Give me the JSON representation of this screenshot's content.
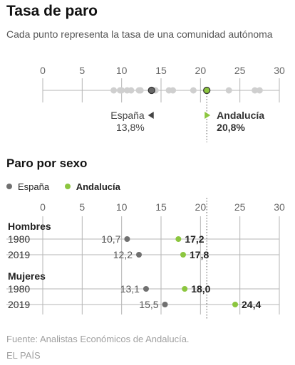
{
  "header": {
    "title": "Tasa de paro",
    "subtitle": "Cada punto representa la tasa de una comunidad autónoma"
  },
  "section2": {
    "title": "Paro por sexo",
    "legend": [
      {
        "label": "España",
        "color": "#707070",
        "bold": false
      },
      {
        "label": "Andalucía",
        "color": "#8cc63f",
        "bold": true
      }
    ]
  },
  "footer": {
    "source": "Fuente: Analistas Económicos de Andalucía.",
    "publisher": "EL PAÍS"
  },
  "colors": {
    "spain": "#707070",
    "andalucia": "#8cc63f",
    "region": "#cfcfcf",
    "axis": "#b5b5b5"
  },
  "chart_data": [
    {
      "type": "scatter",
      "title": "Tasa de paro",
      "subtitle": "Cada punto representa la tasa de una comunidad autónoma",
      "xlim": [
        0,
        30
      ],
      "xticks": [
        0,
        5,
        10,
        15,
        20,
        25,
        30
      ],
      "regions": [
        9.0,
        9.8,
        10.0,
        10.7,
        11.2,
        12.2,
        12.4,
        14.3,
        16.0,
        16.5,
        19.1,
        23.6,
        26.9,
        27.5
      ],
      "spain": {
        "label": "España",
        "value": 13.8,
        "value_label": "13,8%"
      },
      "andalucia": {
        "label": "Andalucía",
        "value": 20.8,
        "value_label": "20,8%"
      }
    },
    {
      "type": "scatter",
      "title": "Paro por sexo",
      "xlim": [
        0,
        30
      ],
      "xticks": [
        0,
        5,
        10,
        15,
        20,
        25,
        30
      ],
      "series": [
        {
          "name": "España",
          "color": "#707070"
        },
        {
          "name": "Andalucía",
          "color": "#8cc63f"
        }
      ],
      "groups": [
        {
          "name": "Hombres",
          "rows": [
            {
              "year": "1980",
              "spain": 10.7,
              "spain_label": "10,7",
              "andalucia": 17.2,
              "andalucia_label": "17,2"
            },
            {
              "year": "2019",
              "spain": 12.2,
              "spain_label": "12,2",
              "andalucia": 17.8,
              "andalucia_label": "17,8"
            }
          ]
        },
        {
          "name": "Mujeres",
          "rows": [
            {
              "year": "1980",
              "spain": 13.1,
              "spain_label": "13,1",
              "andalucia": 18.0,
              "andalucia_label": "18,0"
            },
            {
              "year": "2019",
              "spain": 15.5,
              "spain_label": "15,5",
              "andalucia": 24.4,
              "andalucia_label": "24,4"
            }
          ]
        }
      ],
      "reference_line": 20.8
    }
  ]
}
